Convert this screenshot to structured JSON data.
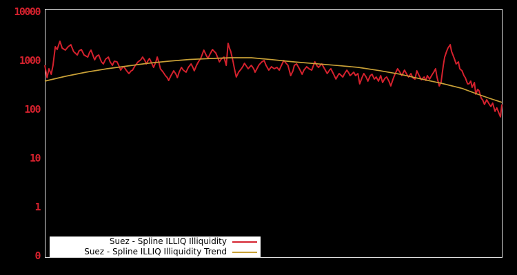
{
  "window": {
    "background_color": "#000000"
  },
  "chart_data": {
    "type": "line",
    "title": "",
    "xlabel": "",
    "ylabel": "",
    "x_axis": {
      "tick_labels": [],
      "x_unit": "percent_of_range",
      "range": [
        0,
        100
      ]
    },
    "y_axis": {
      "scale": "log",
      "tick_labels": [
        "10000",
        "1000",
        "100",
        "10",
        "1",
        "0"
      ],
      "tick_values": [
        10000,
        1000,
        100,
        10,
        1,
        0.1
      ],
      "label_color": "#d4212d"
    },
    "frame_color": "#e0e0e0",
    "grid": "off",
    "legend": {
      "position": "bottom-center-inside",
      "background": "#ffffff",
      "text_color": "#000000"
    },
    "series": [
      {
        "name": "Suez - Spline ILLIQ Illiquidity",
        "color": "#d4212d",
        "width": 2,
        "points": [
          [
            0,
            797
          ],
          [
            0.5,
            444
          ],
          [
            0.9,
            678
          ],
          [
            1.4,
            523
          ],
          [
            1.8,
            797
          ],
          [
            2.3,
            1910
          ],
          [
            2.7,
            1680
          ],
          [
            3.3,
            2480
          ],
          [
            3.8,
            1790
          ],
          [
            4.5,
            1630
          ],
          [
            5.1,
            1910
          ],
          [
            5.7,
            2110
          ],
          [
            6.3,
            1525
          ],
          [
            7.1,
            1296
          ],
          [
            7.5,
            1575
          ],
          [
            8,
            1680
          ],
          [
            8.6,
            1296
          ],
          [
            9.4,
            1176
          ],
          [
            9.8,
            1475
          ],
          [
            10.1,
            1630
          ],
          [
            10.9,
            1033
          ],
          [
            11.3,
            1215
          ],
          [
            11.8,
            1296
          ],
          [
            12.4,
            937
          ],
          [
            12.8,
            850
          ],
          [
            13.3,
            1067
          ],
          [
            13.9,
            1176
          ],
          [
            14.3,
            937
          ],
          [
            14.8,
            797
          ],
          [
            15.2,
            968
          ],
          [
            15.8,
            937
          ],
          [
            16.3,
            747
          ],
          [
            16.6,
            635
          ],
          [
            17,
            723
          ],
          [
            17.3,
            747
          ],
          [
            17.9,
            615
          ],
          [
            18.4,
            540
          ],
          [
            18.9,
            615
          ],
          [
            19.2,
            635
          ],
          [
            19.8,
            797
          ],
          [
            20.4,
            937
          ],
          [
            21,
            1033
          ],
          [
            21.4,
            1176
          ],
          [
            21.9,
            1000
          ],
          [
            22.2,
            850
          ],
          [
            22.6,
            1000
          ],
          [
            22.9,
            1102
          ],
          [
            23.4,
            878
          ],
          [
            23.8,
            723
          ],
          [
            24.3,
            937
          ],
          [
            24.6,
            1176
          ],
          [
            25,
            878
          ],
          [
            25.3,
            678
          ],
          [
            25.9,
            577
          ],
          [
            26.4,
            490
          ],
          [
            26.8,
            444
          ],
          [
            27.1,
            390
          ],
          [
            27.6,
            490
          ],
          [
            28.2,
            615
          ],
          [
            28.7,
            523
          ],
          [
            29,
            444
          ],
          [
            29.4,
            577
          ],
          [
            29.9,
            723
          ],
          [
            30.3,
            635
          ],
          [
            30.9,
            577
          ],
          [
            31.4,
            723
          ],
          [
            32,
            850
          ],
          [
            32.4,
            723
          ],
          [
            32.7,
            615
          ],
          [
            33.2,
            797
          ],
          [
            33.6,
            937
          ],
          [
            34.1,
            1102
          ],
          [
            34.4,
            1296
          ],
          [
            34.8,
            1630
          ],
          [
            35.3,
            1296
          ],
          [
            35.7,
            1102
          ],
          [
            36.2,
            1383
          ],
          [
            36.7,
            1680
          ],
          [
            37.1,
            1525
          ],
          [
            37.4,
            1430
          ],
          [
            37.9,
            1102
          ],
          [
            38.2,
            937
          ],
          [
            38.6,
            1067
          ],
          [
            39.2,
            1176
          ],
          [
            39.7,
            797
          ],
          [
            40.1,
            2250
          ],
          [
            40.4,
            1790
          ],
          [
            40.7,
            1525
          ],
          [
            41.2,
            937
          ],
          [
            41.5,
            678
          ],
          [
            41.9,
            459
          ],
          [
            42.4,
            577
          ],
          [
            43,
            678
          ],
          [
            43.4,
            772
          ],
          [
            43.7,
            878
          ],
          [
            44.2,
            747
          ],
          [
            44.5,
            678
          ],
          [
            44.9,
            747
          ],
          [
            45.2,
            797
          ],
          [
            45.7,
            678
          ],
          [
            46,
            577
          ],
          [
            46.5,
            700
          ],
          [
            46.8,
            797
          ],
          [
            47.2,
            878
          ],
          [
            47.5,
            937
          ],
          [
            48,
            1000
          ],
          [
            48.4,
            797
          ],
          [
            49,
            635
          ],
          [
            49.6,
            747
          ],
          [
            50.2,
            678
          ],
          [
            50.8,
            723
          ],
          [
            51.3,
            635
          ],
          [
            51.7,
            772
          ],
          [
            52.3,
            1000
          ],
          [
            52.8,
            878
          ],
          [
            53.2,
            797
          ],
          [
            53.8,
            490
          ],
          [
            54.3,
            615
          ],
          [
            54.6,
            797
          ],
          [
            55.1,
            850
          ],
          [
            55.7,
            678
          ],
          [
            56.3,
            523
          ],
          [
            56.7,
            635
          ],
          [
            57.3,
            747
          ],
          [
            57.8,
            678
          ],
          [
            58.4,
            635
          ],
          [
            58.8,
            797
          ],
          [
            59.1,
            937
          ],
          [
            59.6,
            772
          ],
          [
            59.9,
            723
          ],
          [
            60.3,
            797
          ],
          [
            60.6,
            850
          ],
          [
            61.2,
            678
          ],
          [
            61.8,
            540
          ],
          [
            62.3,
            635
          ],
          [
            62.6,
            678
          ],
          [
            63.2,
            523
          ],
          [
            63.7,
            417
          ],
          [
            64.1,
            490
          ],
          [
            64.4,
            540
          ],
          [
            64.9,
            490
          ],
          [
            65.2,
            459
          ],
          [
            65.6,
            540
          ],
          [
            66.1,
            635
          ],
          [
            66.5,
            558
          ],
          [
            66.8,
            490
          ],
          [
            67.3,
            540
          ],
          [
            67.6,
            577
          ],
          [
            68,
            490
          ],
          [
            68.5,
            540
          ],
          [
            68.9,
            332
          ],
          [
            69.4,
            444
          ],
          [
            69.8,
            540
          ],
          [
            70.3,
            459
          ],
          [
            70.7,
            378
          ],
          [
            71.2,
            490
          ],
          [
            71.6,
            523
          ],
          [
            72.1,
            417
          ],
          [
            72.5,
            459
          ],
          [
            73,
            378
          ],
          [
            73.5,
            490
          ],
          [
            73.9,
            354
          ],
          [
            74.4,
            430
          ],
          [
            74.8,
            459
          ],
          [
            75.3,
            378
          ],
          [
            75.7,
            301
          ],
          [
            76.2,
            417
          ],
          [
            76.6,
            523
          ],
          [
            77.2,
            678
          ],
          [
            77.7,
            577
          ],
          [
            78.1,
            490
          ],
          [
            78.7,
            635
          ],
          [
            79.2,
            523
          ],
          [
            79.6,
            459
          ],
          [
            80.1,
            540
          ],
          [
            80.5,
            444
          ],
          [
            81,
            417
          ],
          [
            81.4,
            615
          ],
          [
            81.9,
            490
          ],
          [
            82.4,
            403
          ],
          [
            83,
            459
          ],
          [
            83.4,
            390
          ],
          [
            83.7,
            490
          ],
          [
            84.2,
            417
          ],
          [
            84.8,
            523
          ],
          [
            85.1,
            577
          ],
          [
            85.5,
            678
          ],
          [
            85.8,
            459
          ],
          [
            86.3,
            301
          ],
          [
            86.7,
            354
          ],
          [
            87.2,
            797
          ],
          [
            87.5,
            1176
          ],
          [
            87.9,
            1525
          ],
          [
            88.2,
            1790
          ],
          [
            88.7,
            2110
          ],
          [
            89,
            1525
          ],
          [
            89.3,
            1296
          ],
          [
            89.7,
            1033
          ],
          [
            90,
            850
          ],
          [
            90.5,
            937
          ],
          [
            90.8,
            678
          ],
          [
            91.3,
            615
          ],
          [
            91.7,
            490
          ],
          [
            92,
            444
          ],
          [
            92.5,
            332
          ],
          [
            92.8,
            332
          ],
          [
            93.2,
            378
          ],
          [
            93.5,
            282
          ],
          [
            94,
            354
          ],
          [
            94.3,
            204
          ],
          [
            94.7,
            256
          ],
          [
            95,
            240
          ],
          [
            95.5,
            168
          ],
          [
            95.8,
            156
          ],
          [
            96.2,
            126
          ],
          [
            96.7,
            157
          ],
          [
            97.1,
            134
          ],
          [
            97.6,
            114
          ],
          [
            98,
            134
          ],
          [
            98.5,
            91
          ],
          [
            98.9,
            107
          ],
          [
            99.4,
            82
          ],
          [
            99.7,
            70
          ],
          [
            100,
            126
          ]
        ]
      },
      {
        "name": "Suez - Spline ILLIQ Illiquidity Trend",
        "color": "#c9a137",
        "width": 1.7,
        "points": [
          [
            0,
            378
          ],
          [
            4.5,
            475
          ],
          [
            9,
            576
          ],
          [
            13.6,
            678
          ],
          [
            18.1,
            772
          ],
          [
            22.6,
            878
          ],
          [
            27.1,
            968
          ],
          [
            31.7,
            1050
          ],
          [
            36.2,
            1100
          ],
          [
            40.7,
            1140
          ],
          [
            45.2,
            1140
          ],
          [
            49.8,
            1040
          ],
          [
            54.3,
            940
          ],
          [
            59.6,
            855
          ],
          [
            64.1,
            790
          ],
          [
            68.6,
            723
          ],
          [
            73.2,
            620
          ],
          [
            77.7,
            525
          ],
          [
            82.2,
            420
          ],
          [
            86.7,
            343
          ],
          [
            91.3,
            268
          ],
          [
            94.3,
            211
          ],
          [
            97.3,
            168
          ],
          [
            100,
            139
          ]
        ]
      }
    ]
  }
}
